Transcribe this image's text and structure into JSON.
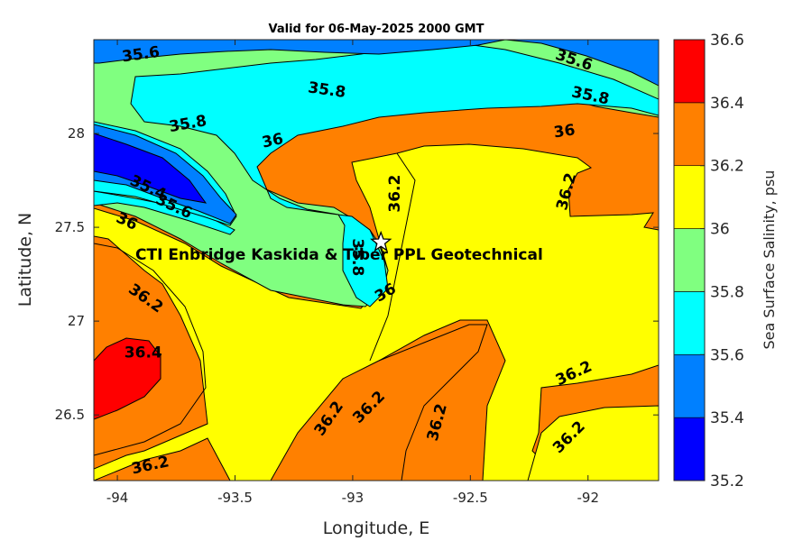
{
  "title": "Valid for 06-May-2025 2000 GMT",
  "xlabel": "Longitude, E",
  "ylabel": "Latitude, N",
  "colorbar_label": "Sea Surface Salinity, psu",
  "site_label": "CTI Enbridge  Kaskida & Tiber PPL Geotechnical",
  "site_marker": "star-icon",
  "xticks": [
    "-94",
    "-93.5",
    "-93",
    "-92.5",
    "-92"
  ],
  "yticks": [
    "28",
    "27.5",
    "27",
    "26.5"
  ],
  "colorbar_ticks": [
    "36.6",
    "36.4",
    "36.2",
    "36",
    "35.8",
    "35.6",
    "35.4",
    "35.2"
  ],
  "colors": {
    "band_35_2": "#0000ff",
    "band_35_4": "#0080ff",
    "band_35_6": "#00ffff",
    "band_35_8": "#80ff80",
    "band_36_0": "#ffff00",
    "band_36_2": "#ff8000",
    "band_36_4": "#ff0000"
  },
  "chart_data": {
    "type": "contour-map",
    "variable": "Sea Surface Salinity, psu",
    "xlim": [
      -94.1,
      -91.7
    ],
    "ylim": [
      26.15,
      28.5
    ],
    "color_levels": [
      35.2,
      35.4,
      35.6,
      35.8,
      36.0,
      36.2,
      36.4,
      36.6
    ],
    "site": {
      "lon": -92.88,
      "lat": 27.42
    },
    "contour_labels": [
      {
        "text": "35.6",
        "lon": -93.9,
        "lat": 28.42
      },
      {
        "text": "35.6",
        "lon": -92.06,
        "lat": 28.39
      },
      {
        "text": "35.8",
        "lon": -93.11,
        "lat": 28.23
      },
      {
        "text": "35.8",
        "lon": -91.99,
        "lat": 28.2
      },
      {
        "text": "35.8",
        "lon": -93.7,
        "lat": 28.05
      },
      {
        "text": "36",
        "lon": -93.34,
        "lat": 27.96
      },
      {
        "text": "36",
        "lon": -92.1,
        "lat": 28.01
      },
      {
        "text": "35.4",
        "lon": -93.87,
        "lat": 27.71
      },
      {
        "text": "35.6",
        "lon": -93.76,
        "lat": 27.61
      },
      {
        "text": "36",
        "lon": -93.96,
        "lat": 27.53
      },
      {
        "text": "36.2",
        "lon": -92.82,
        "lat": 27.68
      },
      {
        "text": "36.2",
        "lon": -92.09,
        "lat": 27.69
      },
      {
        "text": "35.8",
        "lon": -92.98,
        "lat": 27.34
      },
      {
        "text": "36",
        "lon": -92.86,
        "lat": 27.15
      },
      {
        "text": "36.2",
        "lon": -93.88,
        "lat": 27.12
      },
      {
        "text": "36.4",
        "lon": -93.89,
        "lat": 26.83
      },
      {
        "text": "36.2",
        "lon": -92.06,
        "lat": 26.72
      },
      {
        "text": "36.2",
        "lon": -92.93,
        "lat": 26.54
      },
      {
        "text": "36.2",
        "lon": -93.1,
        "lat": 26.48
      },
      {
        "text": "36.2",
        "lon": -92.64,
        "lat": 26.46
      },
      {
        "text": "36.2",
        "lon": -92.08,
        "lat": 26.38
      },
      {
        "text": "36.2",
        "lon": -93.86,
        "lat": 26.23
      }
    ]
  }
}
